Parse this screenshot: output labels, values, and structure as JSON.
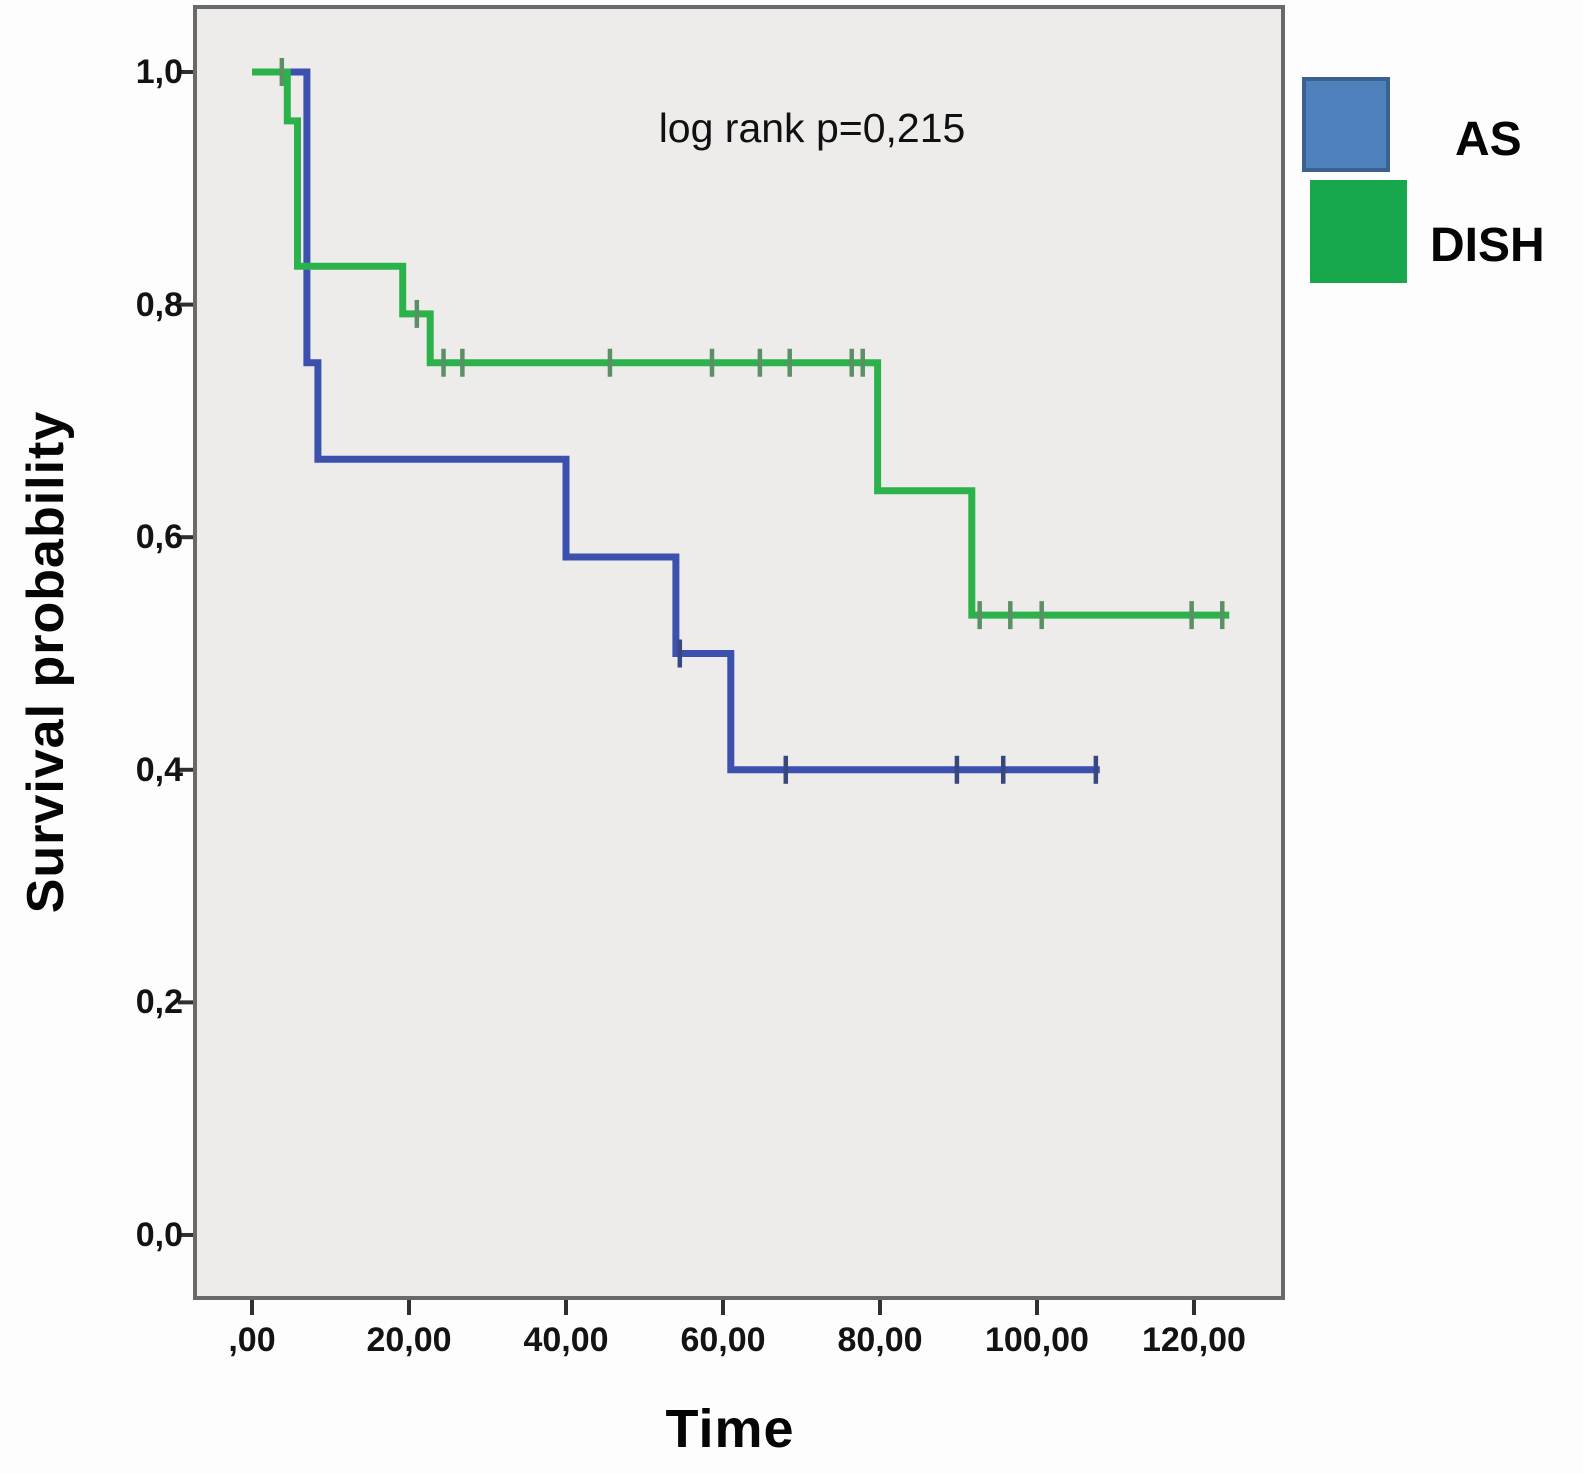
{
  "chart_data": {
    "type": "line",
    "chart_kind": "kaplan_meier_step",
    "title": "",
    "annotation": "log rank p=0,215",
    "xlabel": "Time",
    "ylabel": "Survival probability",
    "xlim": [
      -7.26,
      131.34
    ],
    "ylim": [
      -0.0542,
      1.0559
    ],
    "grid": false,
    "legend_position": "top-right-outside",
    "x_ticks": [
      {
        "value": 0,
        "label": ",00"
      },
      {
        "value": 20,
        "label": "20,00"
      },
      {
        "value": 40,
        "label": "40,00"
      },
      {
        "value": 60,
        "label": "60,00"
      },
      {
        "value": 80,
        "label": "80,00"
      },
      {
        "value": 100,
        "label": "100,00"
      },
      {
        "value": 120,
        "label": "120,00"
      }
    ],
    "y_ticks": [
      {
        "value": 0.0,
        "label": "0,0"
      },
      {
        "value": 0.2,
        "label": "0,2"
      },
      {
        "value": 0.4,
        "label": "0,4"
      },
      {
        "value": 0.6,
        "label": "0,6"
      },
      {
        "value": 0.8,
        "label": "0,8"
      },
      {
        "value": 1.0,
        "label": "1,0"
      }
    ],
    "series": [
      {
        "name": "AS",
        "color": "#3c50ad",
        "censor_color": "#37477f",
        "steps": [
          [
            0,
            1.0
          ],
          [
            7,
            1.0
          ],
          [
            7,
            0.75
          ],
          [
            8.4,
            0.75
          ],
          [
            8.4,
            0.667
          ],
          [
            40,
            0.667
          ],
          [
            40,
            0.583
          ],
          [
            54,
            0.583
          ],
          [
            54,
            0.5
          ],
          [
            61,
            0.5
          ],
          [
            61,
            0.4
          ],
          [
            108,
            0.4
          ]
        ],
        "censors": [
          [
            54.5,
            0.5
          ],
          [
            68,
            0.4
          ],
          [
            89.8,
            0.4
          ],
          [
            95.7,
            0.4
          ],
          [
            107.5,
            0.4
          ]
        ]
      },
      {
        "name": "DISH",
        "color": "#2bb24b",
        "censor_color": "#5c8f66",
        "steps": [
          [
            0,
            1.0
          ],
          [
            4.5,
            1.0
          ],
          [
            4.5,
            0.958
          ],
          [
            5.8,
            0.958
          ],
          [
            5.8,
            0.833
          ],
          [
            19.2,
            0.833
          ],
          [
            19.2,
            0.792
          ],
          [
            22.7,
            0.792
          ],
          [
            22.7,
            0.75
          ],
          [
            79.7,
            0.75
          ],
          [
            79.7,
            0.64
          ],
          [
            91.7,
            0.64
          ],
          [
            91.7,
            0.533
          ],
          [
            124.5,
            0.533
          ]
        ],
        "censors": [
          [
            3.8,
            1.0
          ],
          [
            21,
            0.792
          ],
          [
            24.4,
            0.75
          ],
          [
            26.8,
            0.75
          ],
          [
            45.6,
            0.75
          ],
          [
            58.6,
            0.75
          ],
          [
            64.7,
            0.75
          ],
          [
            68.5,
            0.75
          ],
          [
            76.4,
            0.75
          ],
          [
            77.8,
            0.75
          ],
          [
            92.7,
            0.533
          ],
          [
            96.6,
            0.533
          ],
          [
            100.6,
            0.533
          ],
          [
            119.7,
            0.533
          ],
          [
            123.6,
            0.533
          ]
        ]
      }
    ],
    "legend": [
      {
        "label": "AS",
        "swatch_fill": "#4f81bd",
        "swatch_border": "#3a618f"
      },
      {
        "label": "DISH",
        "swatch_fill": "#17a84e",
        "swatch_border": "#17a84e"
      }
    ],
    "colors": {
      "plot_bg": "#edecea",
      "frame_border": "#6a6868",
      "tick": "#2f2f2f",
      "text": "#0a0a0a",
      "outer_bg": "#fdfdfd"
    }
  }
}
